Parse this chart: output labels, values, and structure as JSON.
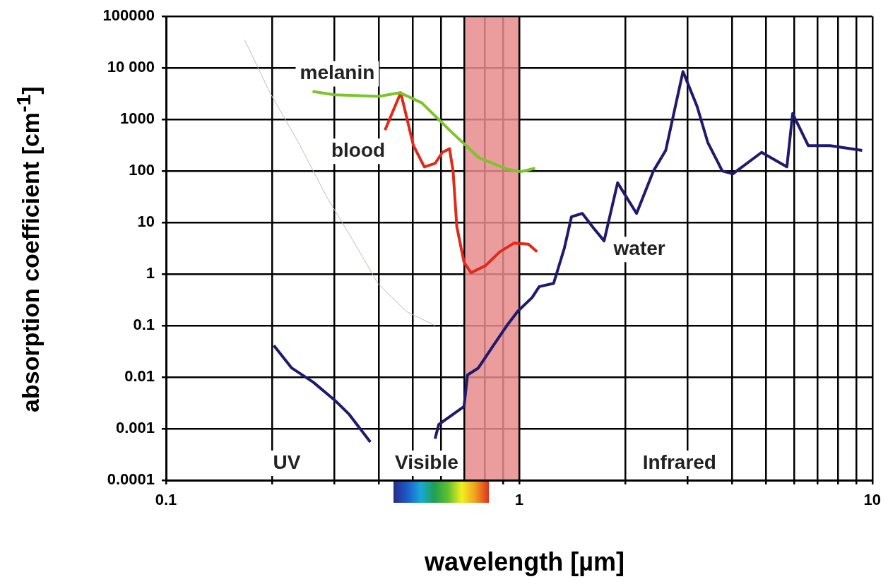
{
  "chart_data": {
    "type": "line",
    "xlabel": "wavelength [µm]",
    "ylabel": "absorption coefficient [cm$^{-1}$]",
    "log": "xy",
    "grid": true,
    "legend": false,
    "marker": "none",
    "line_style": "solid",
    "xlim": [
      0.1,
      10
    ],
    "ylim": [
      0.0001,
      100000
    ],
    "xticks": [
      0.1,
      {
        "value": 0.2,
        "label": null
      },
      {
        "value": 0.3,
        "label": null
      },
      {
        "value": 0.4,
        "label": null
      },
      {
        "value": 0.5,
        "label": null
      },
      {
        "value": 0.6,
        "label": null
      },
      {
        "value": 0.7,
        "label": null
      },
      {
        "value": 0.8,
        "label": null
      },
      {
        "value": 0.9,
        "label": null
      },
      1,
      {
        "value": 2,
        "label": null
      },
      {
        "value": 3,
        "label": null
      },
      {
        "value": 4,
        "label": null
      },
      {
        "value": 5,
        "label": null
      },
      {
        "value": 6,
        "label": null
      },
      {
        "value": 7,
        "label": null
      },
      {
        "value": 8,
        "label": null
      },
      {
        "value": 9,
        "label": null
      },
      10
    ],
    "yticks": [
      {
        "value": 0.0001,
        "label": "0.0001"
      },
      {
        "value": 0.001,
        "label": "0.001"
      },
      {
        "value": 0.01,
        "label": "0.01"
      },
      0.1,
      1,
      10,
      100,
      1000,
      {
        "value": 10000,
        "label": "10 000"
      },
      100000
    ],
    "bands": [
      {
        "axis": "x",
        "from": 0.7,
        "to": 1.0,
        "color": "#e88c8c"
      }
    ],
    "series": [
      {
        "color": "#b8b8d8",
        "x": [
          0.167,
          0.197,
          0.237,
          0.287,
          0.33,
          0.398,
          0.478,
          0.578
        ],
        "values": [
          35000,
          3300,
          360,
          29,
          6,
          0.66,
          0.19,
          0.1
        ]
      },
      {
        "name": "melanin",
        "color": "#7cc42a",
        "x": [
          0.26,
          0.3,
          0.4,
          0.46,
          0.53,
          0.64,
          0.77,
          0.92,
          1.01,
          1.11
        ],
        "values": [
          3500,
          3000,
          2800,
          3300,
          2100,
          590,
          180,
          110,
          97,
          113
        ]
      },
      {
        "name": "blood",
        "color": "#e02a1a",
        "x": [
          0.417,
          0.462,
          0.502,
          0.539,
          0.578,
          0.606,
          0.635,
          0.65,
          0.666,
          0.698,
          0.731,
          0.803,
          0.881,
          0.968,
          1.062,
          1.124
        ],
        "values": [
          620,
          3300,
          310,
          120,
          140,
          230,
          270,
          100,
          8.3,
          1.7,
          1.06,
          1.46,
          2.7,
          4,
          3.8,
          2.7
        ]
      },
      {
        "name": "water",
        "color": "#1e1a6e",
        "x": [
          0.202,
          0.227,
          0.261,
          0.3,
          0.33,
          0.379,
          0.437,
          0.5,
          0.54,
          0.578,
          0.592,
          0.698,
          0.714,
          0.766,
          0.841,
          0.923,
          0.991,
          1.088,
          1.14,
          1.252,
          1.343,
          1.407,
          1.51,
          1.62,
          1.74,
          1.9,
          2.15,
          2.4,
          2.6,
          2.91,
          3.19,
          3.42,
          3.76,
          4.03,
          4.86,
          5.73,
          5.95,
          6.59,
          7.59,
          9.36
        ],
        "values": [
          0.041,
          0.015,
          0.008,
          0.0036,
          0.0019,
          0.00055,
          null,
          null,
          null,
          0.00064,
          0.0012,
          0.0027,
          0.011,
          0.015,
          0.039,
          0.1,
          0.19,
          0.35,
          0.57,
          0.66,
          3.2,
          13,
          15,
          8,
          4.4,
          59,
          15,
          100,
          250,
          8500,
          1800,
          360,
          100,
          88,
          230,
          120,
          1300,
          310,
          310,
          250
        ]
      }
    ],
    "annotations": [
      "UV",
      "Visible",
      "Infrared"
    ]
  }
}
